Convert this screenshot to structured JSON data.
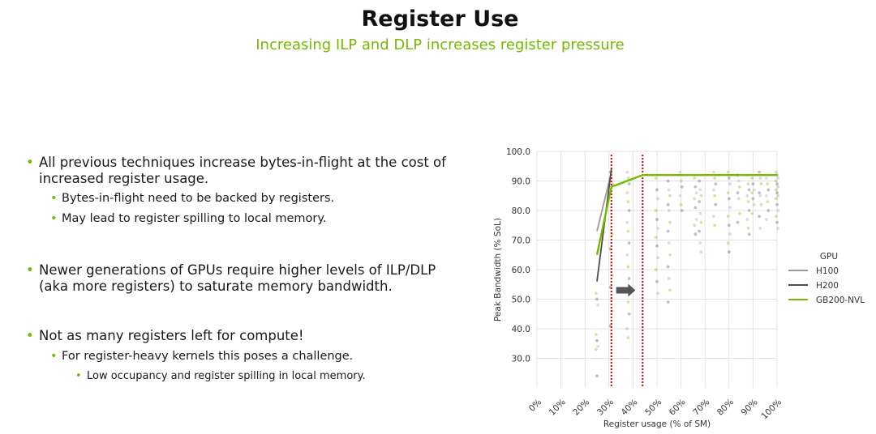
{
  "slide": {
    "title": "Register Use",
    "subtitle": "Increasing ILP and DLP increases register pressure"
  },
  "bullets": [
    {
      "level": 1,
      "text": "All previous techniques increase bytes-in-flight at the cost of increased register usage."
    },
    {
      "level": 2,
      "text": "Bytes-in-flight need to be backed by registers."
    },
    {
      "level": 2,
      "text": "May lead to register spilling to local memory."
    },
    {
      "level": 1,
      "text": "Newer generations of GPUs require higher levels of ILP/DLP (aka more registers) to saturate memory bandwidth."
    },
    {
      "level": 1,
      "text": "Not as many registers left for compute!"
    },
    {
      "level": 2,
      "text": "For register-heavy kernels this poses a challenge."
    },
    {
      "level": 3,
      "text": "Low occupancy and register spilling in local memory."
    }
  ],
  "colors": {
    "accent": "#76b900",
    "h100": "#9a9a9a",
    "h200": "#4d4d4d",
    "gb200": "#76b900",
    "marker_line": "#d40000",
    "arrow": "#555555"
  },
  "chart_data": {
    "type": "line",
    "title": "",
    "xlabel": "Register usage (% of SM)",
    "ylabel": "Peak Bandwidth (% SoL)",
    "xlim": [
      0,
      100
    ],
    "ylim": [
      20,
      100
    ],
    "x_ticks": [
      0,
      10,
      20,
      30,
      40,
      50,
      60,
      70,
      80,
      90,
      100
    ],
    "x_tick_labels": [
      "0%",
      "10%",
      "20%",
      "30%",
      "40%",
      "50%",
      "60%",
      "70%",
      "80%",
      "90%",
      "100%"
    ],
    "y_ticks": [
      30,
      40,
      50,
      60,
      70,
      80,
      90,
      100
    ],
    "y_tick_labels": [
      "30.0",
      "40.0",
      "50.0",
      "60.0",
      "70.0",
      "80.0",
      "90.0",
      "100.0"
    ],
    "grid": true,
    "legend": {
      "title": "GPU",
      "placement": "right"
    },
    "series": [
      {
        "name": "H100",
        "color": "#9a9a9a",
        "x": [
          25,
          31
        ],
        "y": [
          73,
          93
        ]
      },
      {
        "name": "H200",
        "color": "#4d4d4d",
        "x": [
          25,
          31
        ],
        "y": [
          56,
          94
        ]
      },
      {
        "name": "GB200-NVL",
        "color": "#76b900",
        "x": [
          25,
          31,
          44,
          100
        ],
        "y": [
          65,
          88,
          92,
          92
        ]
      }
    ],
    "scatter_columns": [
      {
        "x": 25,
        "values": [
          52,
          50,
          48,
          38,
          36,
          34,
          33,
          24
        ]
      },
      {
        "x": 31,
        "values": [
          93,
          91,
          89,
          86,
          80,
          72,
          67,
          62,
          58,
          54,
          50,
          46,
          41,
          38
        ]
      },
      {
        "x": 38,
        "values": [
          93,
          91,
          89,
          86,
          83,
          80,
          76,
          73,
          69,
          65,
          61,
          57,
          53,
          49,
          45,
          40,
          37
        ]
      },
      {
        "x": 50,
        "values": [
          91,
          87,
          84,
          80,
          77,
          74,
          71,
          68,
          64,
          60,
          56,
          52
        ]
      },
      {
        "x": 55,
        "values": [
          90,
          87,
          85,
          82,
          80,
          76,
          73,
          69,
          65,
          61,
          57,
          53,
          49
        ]
      },
      {
        "x": 60,
        "values": [
          93,
          90,
          88,
          85,
          82,
          80
        ]
      },
      {
        "x": 66,
        "values": [
          91,
          88,
          86,
          84,
          81,
          77,
          75,
          72
        ]
      },
      {
        "x": 68,
        "values": [
          90,
          87,
          85,
          83,
          79,
          76,
          73,
          69,
          66
        ]
      },
      {
        "x": 74,
        "values": [
          93,
          91,
          89,
          87,
          85,
          82,
          78,
          75
        ]
      },
      {
        "x": 80,
        "values": [
          93,
          91,
          89,
          86,
          84,
          81,
          78,
          75,
          72,
          69,
          66
        ]
      },
      {
        "x": 84,
        "values": [
          92,
          90,
          88,
          86,
          84,
          79,
          76
        ]
      },
      {
        "x": 88,
        "values": [
          92,
          89,
          87,
          85,
          83,
          80,
          77,
          74,
          72
        ]
      },
      {
        "x": 90,
        "values": [
          91,
          89,
          87,
          86,
          84,
          82,
          79
        ]
      },
      {
        "x": 93,
        "values": [
          93,
          91,
          89,
          86,
          85,
          82,
          78,
          74
        ]
      },
      {
        "x": 96,
        "values": [
          91,
          89,
          87,
          85,
          83,
          80,
          77
        ]
      },
      {
        "x": 100,
        "values": [
          93,
          92,
          91,
          90,
          89,
          88,
          87,
          86,
          85,
          84,
          82,
          80,
          78,
          76,
          74
        ]
      }
    ],
    "vertical_markers": [
      {
        "x": 31,
        "style": "dotted",
        "color": "#d40000"
      },
      {
        "x": 44,
        "style": "dotted",
        "color": "#d40000"
      }
    ],
    "annotations": [
      {
        "type": "arrow",
        "from_x": 33,
        "to_x": 41,
        "y": 53
      }
    ]
  }
}
